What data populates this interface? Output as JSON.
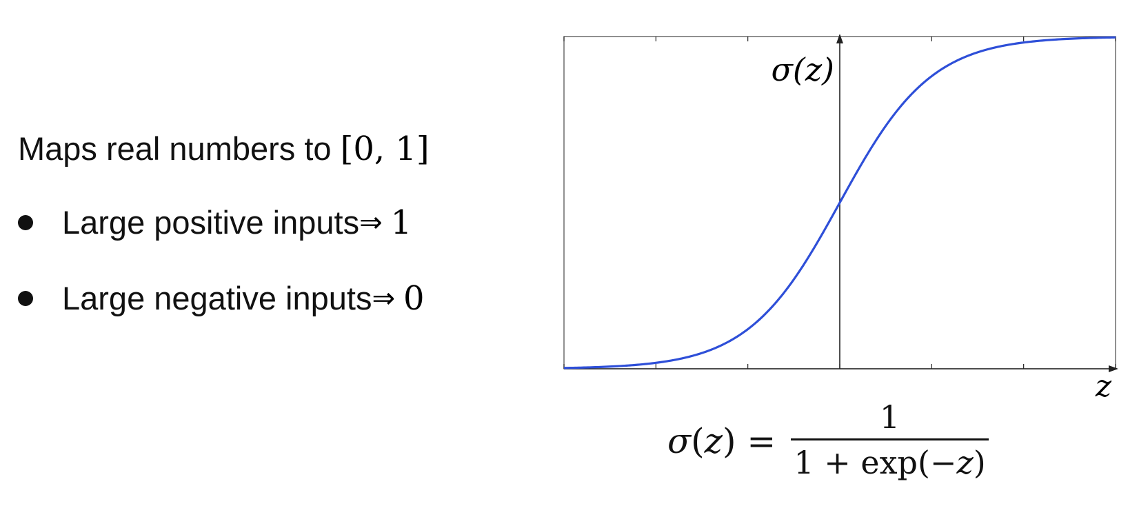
{
  "left_text": {
    "heading_text": "Maps real numbers to ",
    "heading_math": "[0, 1]",
    "bullets": [
      {
        "text": "Large positive inputs ",
        "arrow": "⇒",
        "value": "1"
      },
      {
        "text": "Large negative inputs ",
        "arrow": "⇒",
        "value": "0"
      }
    ]
  },
  "chart_data": {
    "type": "line",
    "function": "sigmoid",
    "title": "",
    "xlabel": "z",
    "ylabel": "σ(z)",
    "xlim": [
      -6,
      6
    ],
    "ylim": [
      0,
      1
    ],
    "x_tick_values": [
      -6,
      -4,
      -2,
      0,
      2,
      4,
      6
    ],
    "grid": false,
    "legend": "none",
    "line_color": "#2e4fd8",
    "series": [
      {
        "x": [
          -6,
          -5,
          -4,
          -3,
          -2.5,
          -2,
          -1.5,
          -1,
          -0.5,
          0,
          0.5,
          1,
          1.5,
          2,
          2.5,
          3,
          4,
          5,
          6
        ],
        "y": [
          0.0025,
          0.0067,
          0.018,
          0.047,
          0.076,
          0.119,
          0.182,
          0.269,
          0.378,
          0.5,
          0.622,
          0.731,
          0.818,
          0.881,
          0.924,
          0.953,
          0.982,
          0.9933,
          0.9975
        ]
      }
    ]
  },
  "formula": {
    "lhs_func": "σ",
    "lhs_arg": "z",
    "equals": "=",
    "numerator": "1",
    "denominator_pre": "1 + exp(−",
    "denominator_var": "z",
    "denominator_post": ")"
  }
}
